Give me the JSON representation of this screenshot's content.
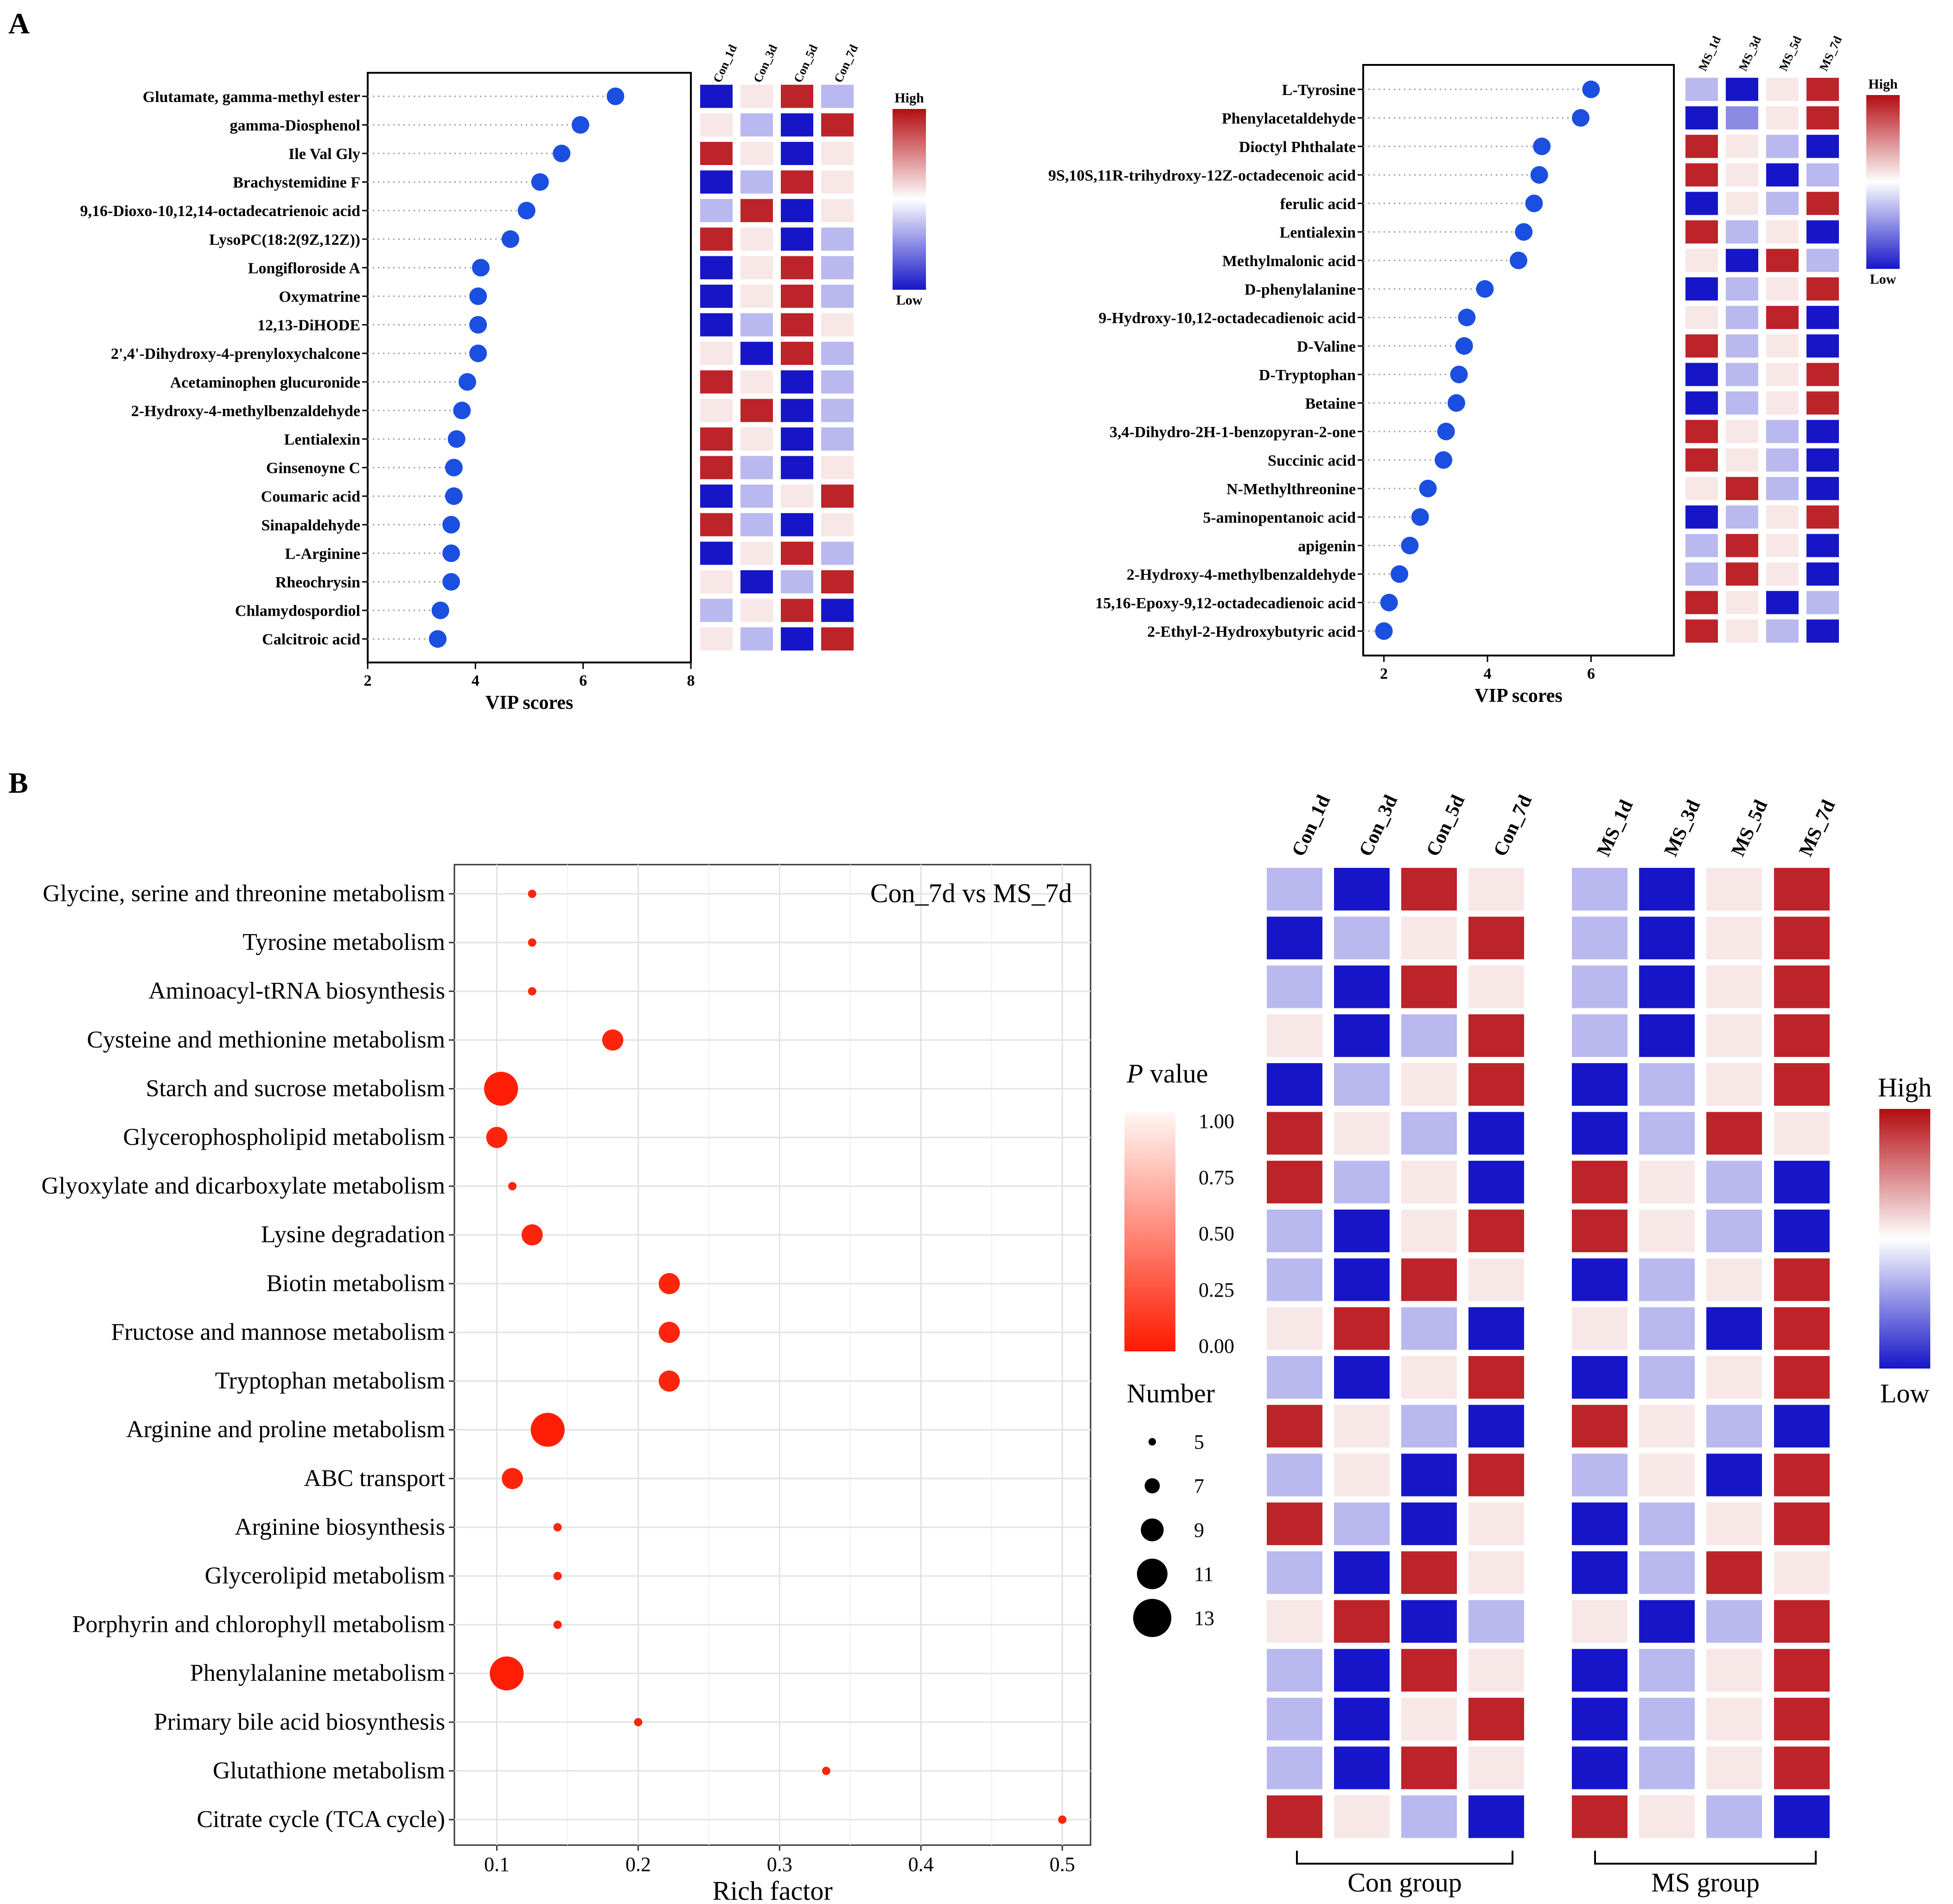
{
  "panels": {
    "a": "A",
    "b": "B"
  },
  "colors": {
    "dot_a": "#1a4fe0",
    "dot_b": "#ff1a00",
    "heat_low": "#1616c8",
    "heat_mid": "#ffffff",
    "heat_high": "#b40c12"
  },
  "chart_data": [
    {
      "id": "a-left",
      "type": "scatter",
      "title": "",
      "xlabel": "VIP scores",
      "ylabel": "",
      "xlim": [
        2,
        8
      ],
      "xticks": [
        2,
        4,
        6,
        8
      ],
      "grid": false,
      "categories": [
        "Glutamate, gamma-methyl ester",
        "gamma-Diosphenol",
        "Ile Val Gly",
        "Brachystemidine F",
        "9,16-Dioxo-10,12,14-octadecatrienoic acid",
        "LysoPC(18:2(9Z,12Z))",
        "Longifloroside A",
        "Oxymatrine",
        "12,13-DiHODE",
        "2',4'-Dihydroxy-4-prenyloxychalcone",
        "Acetaminophen glucuronide",
        "2-Hydroxy-4-methylbenzaldehyde",
        "Lentialexin",
        "Ginsenoyne C",
        "Coumaric acid",
        "Sinapaldehyde",
        "L-Arginine",
        "Rheochrysin",
        "Chlamydospordiol",
        "Calcitroic acid"
      ],
      "values": [
        6.6,
        5.95,
        5.6,
        5.2,
        4.95,
        4.65,
        4.1,
        4.05,
        4.05,
        4.05,
        3.85,
        3.75,
        3.65,
        3.6,
        3.6,
        3.55,
        3.55,
        3.55,
        3.35,
        3.3
      ],
      "heatmap": {
        "columns": [
          "Con_1d",
          "Con_3d",
          "Con_5d",
          "Con_7d"
        ],
        "legend_high": "High",
        "legend_low": "Low",
        "values": [
          [
            -1,
            0.1,
            0.9,
            -0.3
          ],
          [
            0.1,
            -0.3,
            -1,
            0.9
          ],
          [
            0.9,
            0.1,
            -1,
            0.1
          ],
          [
            -1,
            -0.3,
            0.9,
            0.1
          ],
          [
            -0.3,
            0.9,
            -1,
            0.1
          ],
          [
            0.9,
            0.1,
            -1,
            -0.3
          ],
          [
            -1,
            0.1,
            0.9,
            -0.3
          ],
          [
            -1,
            0.1,
            0.9,
            -0.3
          ],
          [
            -1,
            -0.3,
            0.9,
            0.1
          ],
          [
            0.1,
            -1,
            0.9,
            -0.3
          ],
          [
            0.9,
            0.1,
            -1,
            -0.3
          ],
          [
            0.1,
            0.9,
            -1,
            -0.3
          ],
          [
            0.9,
            0.1,
            -1,
            -0.3
          ],
          [
            0.9,
            -0.3,
            -1,
            0.1
          ],
          [
            -1,
            -0.3,
            0.1,
            0.9
          ],
          [
            0.9,
            -0.3,
            -1,
            0.1
          ],
          [
            -1,
            0.1,
            0.9,
            -0.3
          ],
          [
            0.1,
            -1,
            -0.3,
            0.9
          ],
          [
            -0.3,
            0.1,
            0.9,
            -1
          ],
          [
            0.1,
            -0.3,
            -1,
            0.9
          ]
        ]
      }
    },
    {
      "id": "a-right",
      "type": "scatter",
      "title": "",
      "xlabel": "VIP scores",
      "ylabel": "",
      "xlim": [
        1.6,
        7.6
      ],
      "xticks": [
        2,
        4,
        6
      ],
      "grid": false,
      "categories": [
        "L-Tyrosine",
        "Phenylacetaldehyde",
        "Dioctyl Phthalate",
        "9S,10S,11R-trihydroxy-12Z-octadecenoic acid",
        "ferulic acid",
        "Lentialexin",
        "Methylmalonic acid",
        "D-phenylalanine",
        "9-Hydroxy-10,12-octadecadienoic acid",
        "D-Valine",
        "D-Tryptophan",
        "Betaine",
        "3,4-Dihydro-2H-1-benzopyran-2-one",
        "Succinic acid",
        "N-Methylthreonine",
        "5-aminopentanoic acid",
        "apigenin",
        "2-Hydroxy-4-methylbenzaldehyde",
        "15,16-Epoxy-9,12-octadecadienoic acid",
        "2-Ethyl-2-Hydroxybutyric acid"
      ],
      "values": [
        6.0,
        5.8,
        5.05,
        5.0,
        4.9,
        4.7,
        4.6,
        3.95,
        3.6,
        3.55,
        3.45,
        3.4,
        3.2,
        3.15,
        2.85,
        2.7,
        2.5,
        2.3,
        2.1,
        2.0
      ],
      "heatmap": {
        "columns": [
          "MS_1d",
          "MS_3d",
          "MS_5d",
          "MS_7d"
        ],
        "legend_high": "High",
        "legend_low": "Low",
        "values": [
          [
            -0.3,
            -1,
            0.1,
            0.9
          ],
          [
            -1,
            -0.5,
            0.1,
            0.9
          ],
          [
            0.9,
            0.1,
            -0.3,
            -1
          ],
          [
            0.9,
            0.1,
            -1,
            -0.3
          ],
          [
            -1,
            0.1,
            -0.3,
            0.9
          ],
          [
            0.9,
            -0.3,
            0.1,
            -1
          ],
          [
            0.1,
            -1,
            0.9,
            -0.3
          ],
          [
            -1,
            -0.3,
            0.1,
            0.9
          ],
          [
            0.1,
            -0.3,
            0.9,
            -1
          ],
          [
            0.9,
            -0.3,
            0.1,
            -1
          ],
          [
            -1,
            -0.3,
            0.1,
            0.9
          ],
          [
            -1,
            -0.3,
            0.1,
            0.9
          ],
          [
            0.9,
            0.1,
            -0.3,
            -1
          ],
          [
            0.9,
            0.1,
            -0.3,
            -1
          ],
          [
            0.1,
            0.9,
            -0.3,
            -1
          ],
          [
            -1,
            -0.3,
            0.1,
            0.9
          ],
          [
            -0.3,
            0.9,
            0.1,
            -1
          ],
          [
            -0.3,
            0.9,
            0.1,
            -1
          ],
          [
            0.9,
            0.1,
            -1,
            -0.3
          ],
          [
            0.9,
            0.1,
            -0.3,
            -1
          ]
        ]
      }
    },
    {
      "id": "b-bubble",
      "type": "scatter",
      "title": "Con_7d vs MS_7d",
      "xlabel": "Rich factor",
      "ylabel": "",
      "xlim": [
        0.07,
        0.52
      ],
      "xticks": [
        0.1,
        0.2,
        0.3,
        0.4,
        0.5
      ],
      "grid": true,
      "categories": [
        "Glycine, serine and threonine metabolism",
        "Tyrosine metabolism",
        "Aminoacyl-tRNA biosynthesis",
        "Cysteine and methionine metabolism",
        "Starch and sucrose metabolism",
        "Glycerophospholipid metabolism",
        "Glyoxylate and dicarboxylate metabolism",
        "Lysine degradation",
        "Biotin metabolism",
        "Fructose and mannose metabolism",
        "Tryptophan metabolism",
        "Arginine and proline metabolism",
        "ABC transport",
        "Arginine biosynthesis",
        "Glycerolipid metabolism",
        "Porphyrin and chlorophyll metabolism",
        "Phenylalanine metabolism",
        "Primary bile acid biosynthesis",
        "Glutathione metabolism",
        "Citrate cycle (TCA cycle)"
      ],
      "x": [
        0.125,
        0.125,
        0.125,
        0.182,
        0.103,
        0.1,
        0.111,
        0.125,
        0.222,
        0.222,
        0.222,
        0.136,
        0.111,
        0.143,
        0.143,
        0.143,
        0.107,
        0.2,
        0.333,
        0.5
      ],
      "number": [
        5,
        5,
        5,
        8,
        11,
        8,
        5,
        8,
        8,
        8,
        8,
        11,
        8,
        5,
        5,
        5,
        11,
        5,
        5,
        5
      ],
      "p_value": [
        0.05,
        0.05,
        0.05,
        0.05,
        0.02,
        0.05,
        0.05,
        0.05,
        0.05,
        0.05,
        0.05,
        0.02,
        0.05,
        0.05,
        0.05,
        0.05,
        0.02,
        0.05,
        0.05,
        0.05
      ],
      "legend": {
        "p_title_italic": "P",
        "p_title_rest": " value",
        "p_ticks": [
          "1.00",
          "0.75",
          "0.50",
          "0.25",
          "0.00"
        ],
        "number_title": "Number",
        "number_ticks": [
          5,
          7,
          9,
          11,
          13
        ]
      }
    },
    {
      "id": "b-heatmap",
      "type": "heatmap",
      "title": "",
      "xlabel": "",
      "ylabel": "",
      "columns": [
        "Con_1d",
        "Con_3d",
        "Con_5d",
        "Con_7d",
        "MS_1d",
        "MS_3d",
        "MS_5d",
        "MS_7d"
      ],
      "groups": [
        "Con group",
        "MS group"
      ],
      "legend_high": "High",
      "legend_low": "Low",
      "values": [
        [
          -0.3,
          -1,
          0.9,
          0.1,
          -0.3,
          -1,
          0.1,
          0.9
        ],
        [
          -1,
          -0.3,
          0.1,
          0.9,
          -0.3,
          -1,
          0.1,
          0.9
        ],
        [
          -0.3,
          -1,
          0.9,
          0.1,
          -0.3,
          -1,
          0.1,
          0.9
        ],
        [
          0.1,
          -1,
          -0.3,
          0.9,
          -0.3,
          -1,
          0.1,
          0.9
        ],
        [
          -1,
          -0.3,
          0.1,
          0.9,
          -1,
          -0.3,
          0.1,
          0.9
        ],
        [
          0.9,
          0.1,
          -0.3,
          -1,
          -1,
          -0.3,
          0.9,
          0.1
        ],
        [
          0.9,
          -0.3,
          0.1,
          -1,
          0.9,
          0.1,
          -0.3,
          -1
        ],
        [
          -0.3,
          -1,
          0.1,
          0.9,
          0.9,
          0.1,
          -0.3,
          -1
        ],
        [
          -0.3,
          -1,
          0.9,
          0.1,
          -1,
          -0.3,
          0.1,
          0.9
        ],
        [
          0.1,
          0.9,
          -0.3,
          -1,
          0.1,
          -0.3,
          -1,
          0.9
        ],
        [
          -0.3,
          -1,
          0.1,
          0.9,
          -1,
          -0.3,
          0.1,
          0.9
        ],
        [
          0.9,
          0.1,
          -0.3,
          -1,
          0.9,
          0.1,
          -0.3,
          -1
        ],
        [
          -0.3,
          0.1,
          -1,
          0.9,
          -0.3,
          0.1,
          -1,
          0.9
        ],
        [
          0.9,
          -0.3,
          -1,
          0.1,
          -1,
          -0.3,
          0.1,
          0.9
        ],
        [
          -0.3,
          -1,
          0.9,
          0.1,
          -1,
          -0.3,
          0.9,
          0.1
        ],
        [
          0.1,
          0.9,
          -1,
          -0.3,
          0.1,
          -1,
          -0.3,
          0.9
        ],
        [
          -0.3,
          -1,
          0.9,
          0.1,
          -1,
          -0.3,
          0.1,
          0.9
        ],
        [
          -0.3,
          -1,
          0.1,
          0.9,
          -1,
          -0.3,
          0.1,
          0.9
        ],
        [
          -0.3,
          -1,
          0.9,
          0.1,
          -1,
          -0.3,
          0.1,
          0.9
        ],
        [
          0.9,
          0.1,
          -0.3,
          -1,
          0.9,
          0.1,
          -0.3,
          -1
        ]
      ]
    }
  ]
}
